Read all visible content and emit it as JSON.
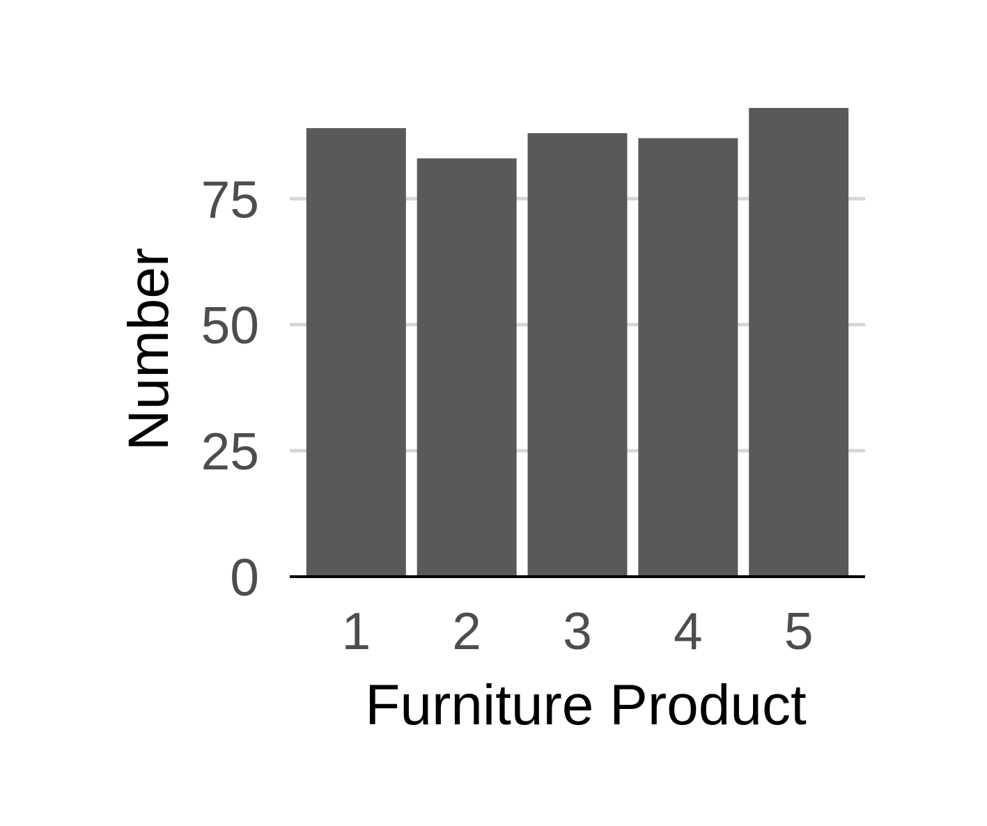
{
  "chart_data": {
    "type": "bar",
    "categories": [
      "1",
      "2",
      "3",
      "4",
      "5"
    ],
    "values": [
      89,
      83,
      88,
      87,
      93
    ],
    "title": "",
    "xlabel": "Furniture Product",
    "ylabel": "Number",
    "ylim": [
      0,
      93
    ],
    "yticks": [
      0,
      25,
      50,
      75
    ],
    "ytick_labels": [
      "0",
      "25",
      "50",
      "75"
    ],
    "grid": "horizontal major",
    "legend": "none",
    "bar_color": "#595959",
    "grid_color": "#d6d6d6"
  }
}
